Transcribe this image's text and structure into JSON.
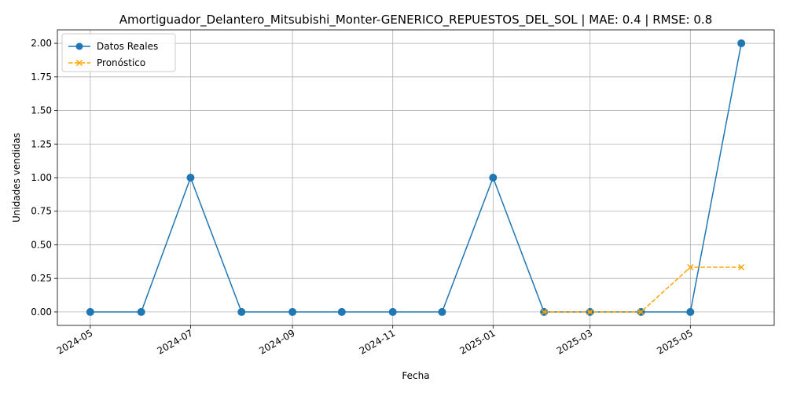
{
  "chart_data": {
    "type": "line",
    "title": "Amortiguador_Delantero_Mitsubishi_Monter-GENERICO_REPUESTOS_DEL_SOL | MAE: 0.4 | RMSE: 0.8",
    "xlabel": "Fecha",
    "ylabel": "Unidades vendidas",
    "x_tick_labels": [
      "2024-05",
      "2024-07",
      "2024-09",
      "2024-11",
      "2025-01",
      "2025-03",
      "2025-05"
    ],
    "y_tick_labels": [
      "0.00",
      "0.25",
      "0.50",
      "0.75",
      "1.00",
      "1.25",
      "1.50",
      "1.75",
      "2.00"
    ],
    "ylim": [
      -0.1,
      2.1
    ],
    "xlim": [
      "2024-04-11",
      "2025-06-21"
    ],
    "grid": true,
    "legend_position": "top-left",
    "series": [
      {
        "name": "Datos Reales",
        "color": "#1f77b4",
        "marker": "circle",
        "linestyle": "solid",
        "x": [
          "2024-05-01",
          "2024-06-01",
          "2024-07-01",
          "2024-08-01",
          "2024-09-01",
          "2024-10-01",
          "2024-11-01",
          "2024-12-01",
          "2025-01-01",
          "2025-02-01",
          "2025-03-01",
          "2025-04-01",
          "2025-05-01",
          "2025-06-01"
        ],
        "values": [
          0,
          0,
          1,
          0,
          0,
          0,
          0,
          0,
          1,
          0,
          0,
          0,
          0,
          2
        ]
      },
      {
        "name": "Pronóstico",
        "color": "#ffa500",
        "marker": "x",
        "linestyle": "dashed",
        "x": [
          "2025-02-01",
          "2025-03-01",
          "2025-04-01",
          "2025-05-01",
          "2025-06-01"
        ],
        "values": [
          0,
          0,
          0,
          0.333,
          0.333
        ]
      }
    ]
  }
}
